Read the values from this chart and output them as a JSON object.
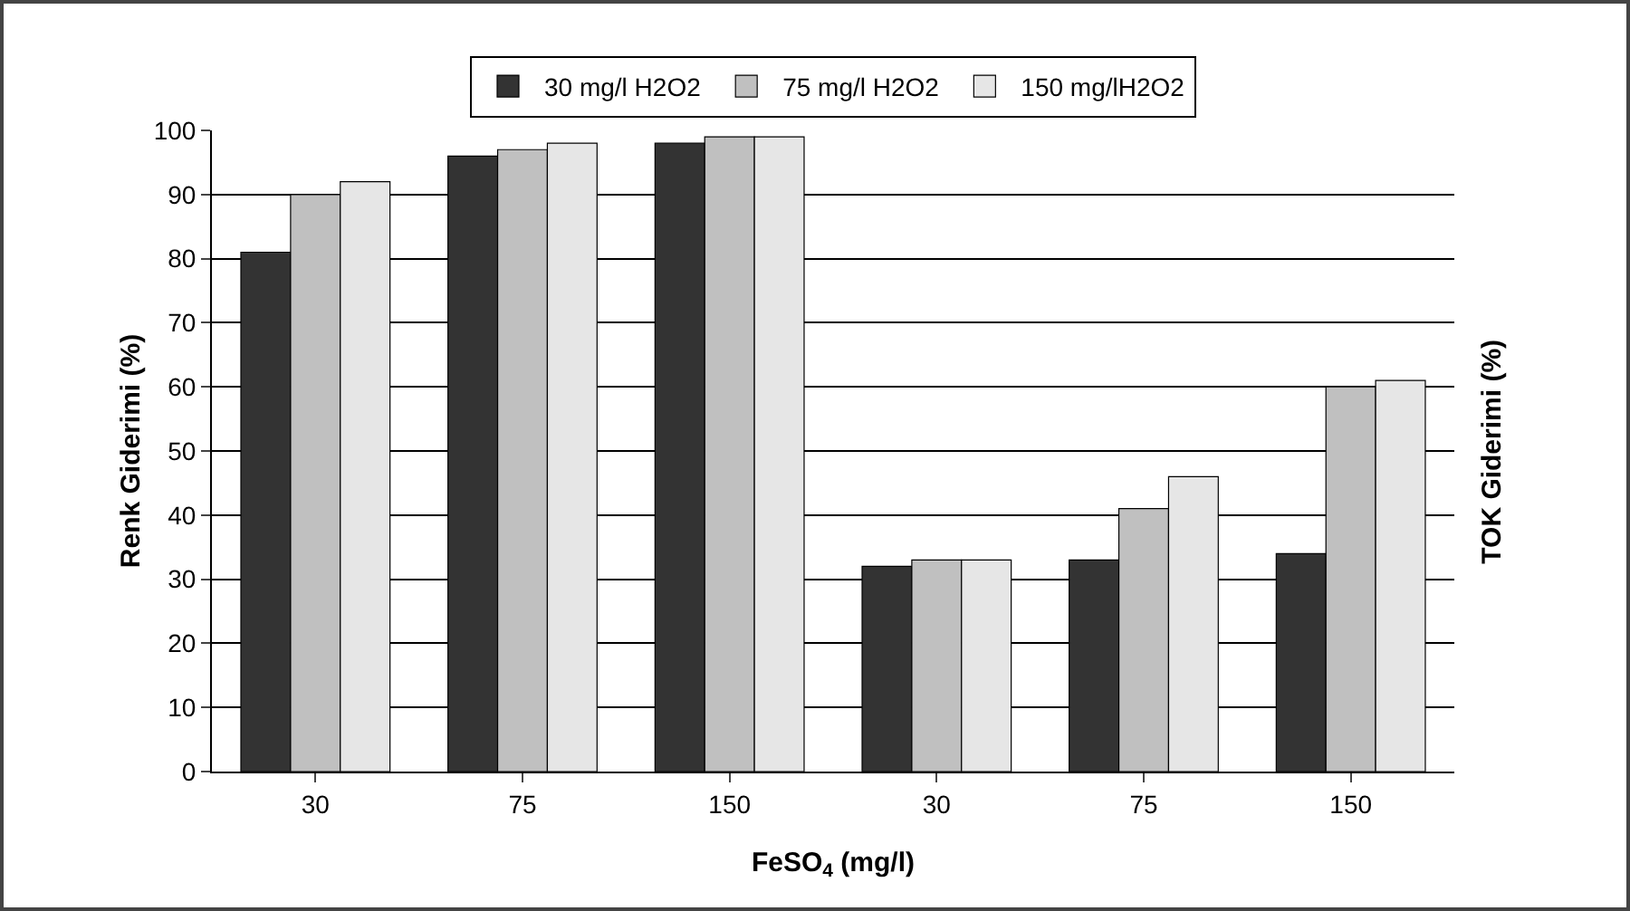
{
  "chart_data": {
    "type": "bar",
    "xlabel": "FeSO$_{4}$ (mg/l)",
    "ylabel": "Renk Giderimi (%)",
    "y2label": "TOK Giderimi (%)",
    "categories": [
      "30",
      "75",
      "150",
      "30",
      "75",
      "150"
    ],
    "series": [
      {
        "name": "30 mg/l H2O2",
        "color": "#333333",
        "values": [
          81,
          96,
          98,
          32,
          33,
          34
        ]
      },
      {
        "name": "75 mg/l H2O2",
        "color": "#c0c0c0",
        "values": [
          90,
          97,
          99,
          33,
          41,
          60
        ]
      },
      {
        "name": "150 mg/lH2O2",
        "color": "#e6e6e6",
        "values": [
          92,
          98,
          99,
          33,
          46,
          61
        ]
      }
    ],
    "ylim": [
      0,
      100
    ],
    "yticks": [
      0,
      10,
      20,
      30,
      40,
      50,
      60,
      70,
      80,
      90,
      100
    ],
    "grid": "y",
    "legend": "top"
  }
}
